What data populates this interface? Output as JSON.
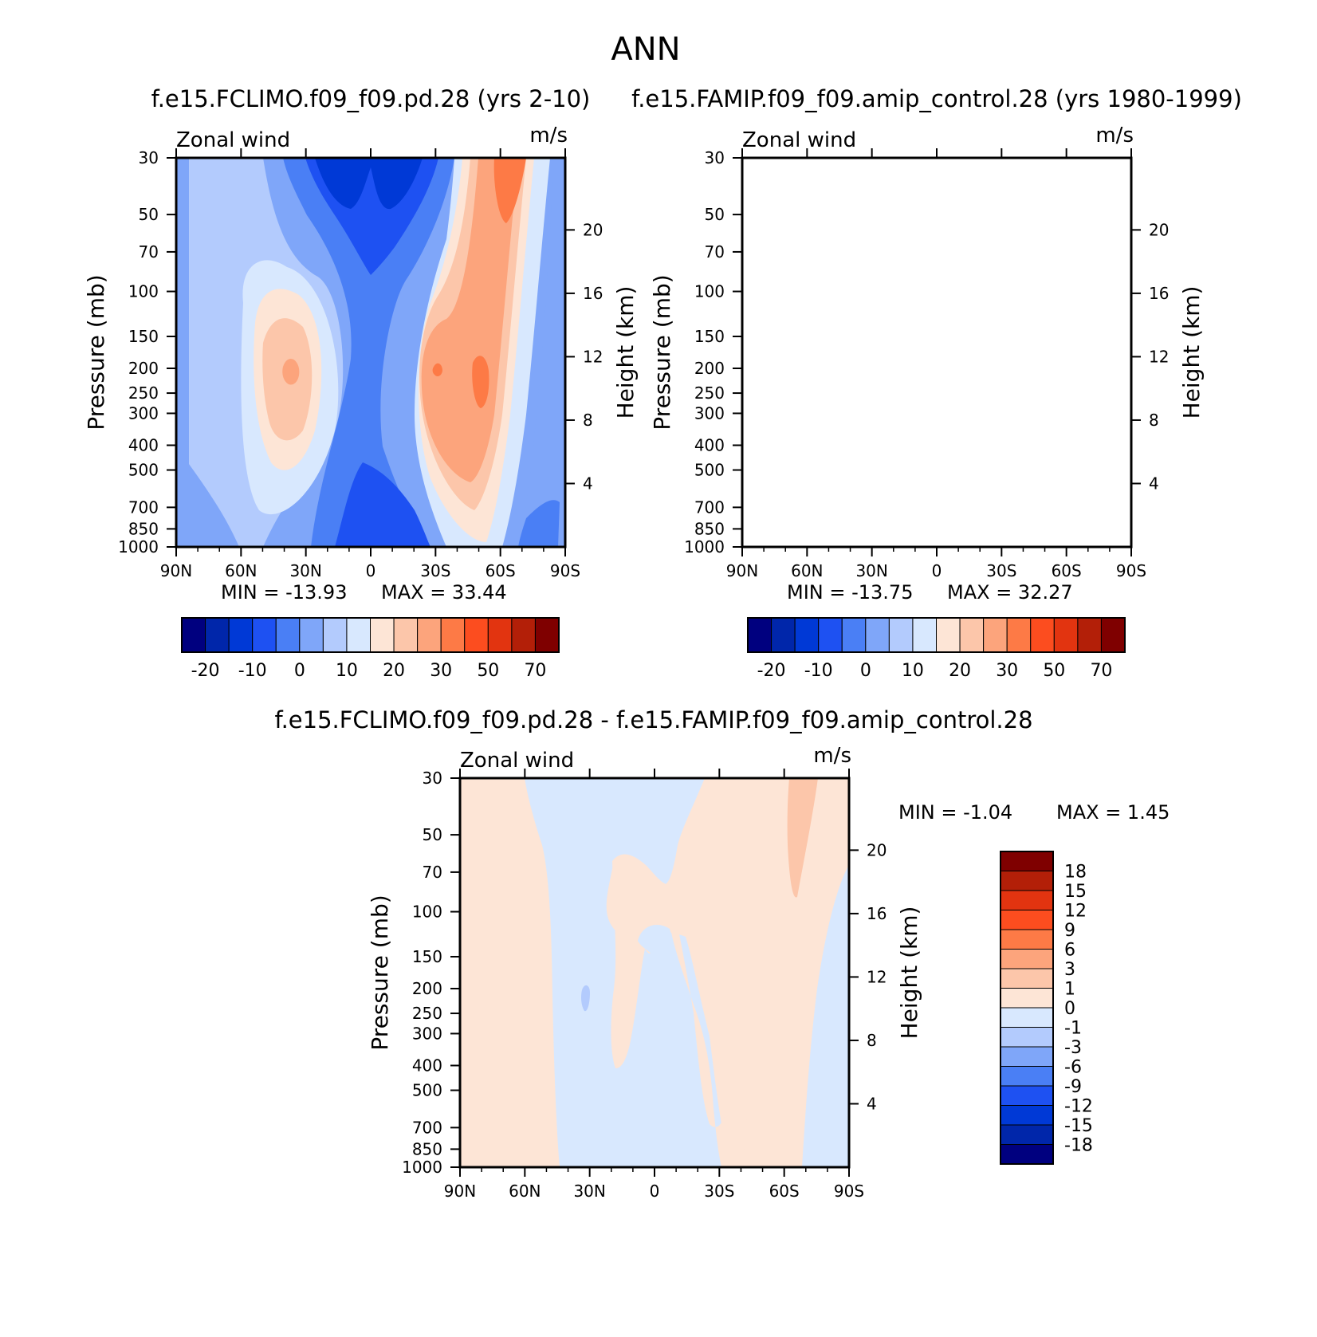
{
  "title": "ANN",
  "chart_data": [
    {
      "type": "heatmap",
      "title": "f.e15.FCLIMO.f09_f09.pd.28 (yrs 2-10)",
      "subtitle_left": "Zonal wind",
      "subtitle_right": "m/s",
      "ylabel": "Pressure (mb)",
      "ylabel_right": "Height (km)",
      "x_ticks": [
        "90N",
        "60N",
        "30N",
        "0",
        "30S",
        "60S",
        "90S"
      ],
      "x_range": [
        90,
        -90
      ],
      "y_ticks": [
        "30",
        "50",
        "70",
        "100",
        "150",
        "200",
        "250",
        "300",
        "400",
        "500",
        "700",
        "850",
        "1000"
      ],
      "y_range": [
        30,
        1000
      ],
      "y_scale": "log",
      "y_right_ticks": [
        "20",
        "16",
        "12",
        "8",
        "4"
      ],
      "min_label": "MIN = -13.93",
      "max_label": "MAX = 33.44",
      "min": -13.93,
      "max": 33.44,
      "colorbar": {
        "orientation": "horizontal",
        "colors": [
          "#00007f",
          "#0026aa",
          "#0039d6",
          "#1e51f2",
          "#4a7ff5",
          "#7fa6f9",
          "#b3cbfd",
          "#d8e8fe",
          "#fde5d6",
          "#fcc6aa",
          "#fca47c",
          "#fd7a46",
          "#fc4d1f",
          "#e23410",
          "#b31f08",
          "#7f0000"
        ],
        "tick_labels": [
          "-20",
          "-10",
          "0",
          "10",
          "20",
          "30",
          "50",
          "70"
        ]
      }
    },
    {
      "type": "heatmap",
      "title": "f.e15.FAMIP.f09_f09.amip_control.28 (yrs 1980-1999)",
      "subtitle_left": "Zonal wind",
      "subtitle_right": "m/s",
      "ylabel": "Pressure (mb)",
      "ylabel_right": "Height (km)",
      "x_ticks": [
        "90N",
        "60N",
        "30N",
        "0",
        "30S",
        "60S",
        "90S"
      ],
      "x_range": [
        90,
        -90
      ],
      "y_ticks": [
        "30",
        "50",
        "70",
        "100",
        "150",
        "200",
        "250",
        "300",
        "400",
        "500",
        "700",
        "850",
        "1000"
      ],
      "y_range": [
        30,
        1000
      ],
      "y_scale": "log",
      "y_right_ticks": [
        "20",
        "16",
        "12",
        "8",
        "4"
      ],
      "min_label": "MIN = -13.75",
      "max_label": "MAX = 32.27",
      "min": -13.75,
      "max": 32.27,
      "colorbar": {
        "orientation": "horizontal",
        "colors": [
          "#00007f",
          "#0026aa",
          "#0039d6",
          "#1e51f2",
          "#4a7ff5",
          "#7fa6f9",
          "#b3cbfd",
          "#d8e8fe",
          "#fde5d6",
          "#fcc6aa",
          "#fca47c",
          "#fd7a46",
          "#fc4d1f",
          "#e23410",
          "#b31f08",
          "#7f0000"
        ],
        "tick_labels": [
          "-20",
          "-10",
          "0",
          "10",
          "20",
          "30",
          "50",
          "70"
        ]
      }
    },
    {
      "type": "heatmap",
      "title": "f.e15.FCLIMO.f09_f09.pd.28 - f.e15.FAMIP.f09_f09.amip_control.28",
      "subtitle_left": "Zonal wind",
      "subtitle_right": "m/s",
      "ylabel": "Pressure (mb)",
      "ylabel_right": "Height (km)",
      "x_ticks": [
        "90N",
        "60N",
        "30N",
        "0",
        "30S",
        "60S",
        "90S"
      ],
      "x_range": [
        90,
        -90
      ],
      "y_ticks": [
        "30",
        "50",
        "70",
        "100",
        "150",
        "200",
        "250",
        "300",
        "400",
        "500",
        "700",
        "850",
        "1000"
      ],
      "y_range": [
        30,
        1000
      ],
      "y_scale": "log",
      "y_right_ticks": [
        "20",
        "16",
        "12",
        "8",
        "4"
      ],
      "min_label": "MIN = -1.04",
      "max_label": "MAX = 1.45",
      "min": -1.04,
      "max": 1.45,
      "colorbar": {
        "orientation": "vertical",
        "colors": [
          "#00007f",
          "#0026aa",
          "#0039d6",
          "#1e51f2",
          "#4a7ff5",
          "#7fa6f9",
          "#b3cbfd",
          "#d8e8fe",
          "#fde5d6",
          "#fcc6aa",
          "#fca47c",
          "#fd7a46",
          "#fc4d1f",
          "#e23410",
          "#b31f08",
          "#7f0000"
        ],
        "tick_labels": [
          "-18",
          "-15",
          "-12",
          "-9",
          "-6",
          "-3",
          "-1",
          "0",
          "1",
          "3",
          "6",
          "9",
          "12",
          "15",
          "18"
        ]
      }
    }
  ]
}
